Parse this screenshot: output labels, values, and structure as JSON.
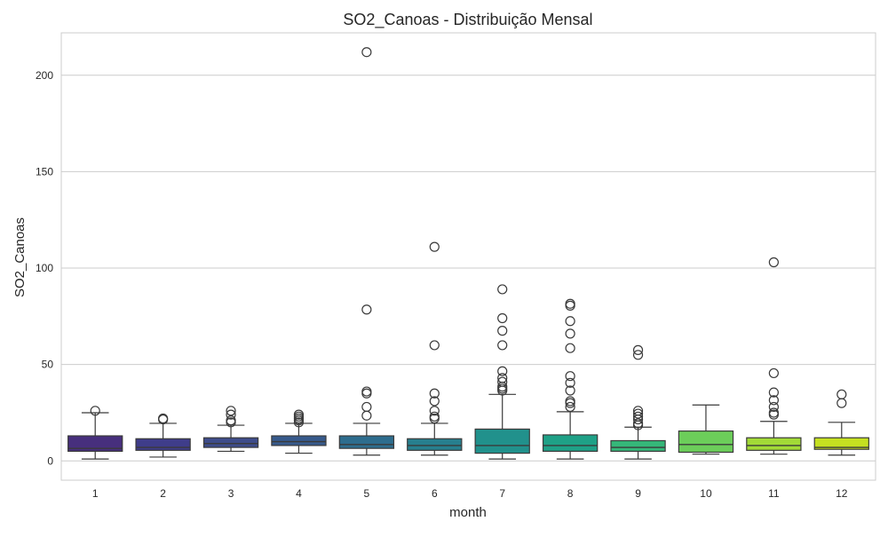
{
  "chart_data": {
    "type": "box",
    "title": "SO2_Canoas - Distribuição Mensal",
    "xlabel": "month",
    "ylabel": "SO2_Canoas",
    "categories": [
      "1",
      "2",
      "3",
      "4",
      "5",
      "6",
      "7",
      "8",
      "9",
      "10",
      "11",
      "12"
    ],
    "ylim": [
      -10,
      222
    ],
    "yticks": [
      0,
      50,
      100,
      150,
      200
    ],
    "grid": true,
    "boxes": [
      {
        "category": "1",
        "whisker_low": 1,
        "q1": 5,
        "median": 6.5,
        "q3": 13,
        "whisker_high": 25,
        "outliers": [
          26
        ],
        "color": "#472f7d"
      },
      {
        "category": "2",
        "whisker_low": 2,
        "q1": 5.5,
        "median": 7,
        "q3": 11.5,
        "whisker_high": 19.5,
        "outliers": [
          21.5,
          22
        ],
        "color": "#3f3d8a"
      },
      {
        "category": "3",
        "whisker_low": 5,
        "q1": 7,
        "median": 9,
        "q3": 12,
        "whisker_high": 18.5,
        "outliers": [
          20,
          21,
          24,
          26
        ],
        "color": "#3e4c8a"
      },
      {
        "category": "4",
        "whisker_low": 4,
        "q1": 8,
        "median": 10,
        "q3": 13,
        "whisker_high": 19.5,
        "outliers": [
          20,
          21,
          22,
          23,
          24
        ],
        "color": "#375a8c"
      },
      {
        "category": "5",
        "whisker_low": 3,
        "q1": 6.5,
        "median": 8.5,
        "q3": 13,
        "whisker_high": 19.5,
        "outliers": [
          23.5,
          28,
          35,
          36,
          78.5,
          212
        ],
        "color": "#2e6d8e"
      },
      {
        "category": "6",
        "whisker_low": 3,
        "q1": 5.5,
        "median": 8,
        "q3": 11.5,
        "whisker_high": 19.5,
        "outliers": [
          22,
          23,
          26,
          31,
          35,
          60,
          111
        ],
        "color": "#277f8e"
      },
      {
        "category": "7",
        "whisker_low": 1,
        "q1": 4,
        "median": 8,
        "q3": 16.5,
        "whisker_high": 34.5,
        "outliers": [
          36.5,
          37.5,
          38.5,
          41,
          43,
          46.5,
          60,
          67.5,
          74,
          89
        ],
        "color": "#21918c"
      },
      {
        "category": "8",
        "whisker_low": 1,
        "q1": 5,
        "median": 8,
        "q3": 13.5,
        "whisker_high": 25.5,
        "outliers": [
          28,
          30,
          31,
          36.5,
          40.5,
          44,
          58.5,
          66,
          72.5,
          80.5,
          81.5
        ],
        "color": "#1fa187"
      },
      {
        "category": "9",
        "whisker_low": 1,
        "q1": 5,
        "median": 7,
        "q3": 10.5,
        "whisker_high": 17.5,
        "outliers": [
          18.5,
          19.5,
          21.5,
          23,
          24.5,
          26,
          55,
          57.5
        ],
        "color": "#35b779"
      },
      {
        "category": "10",
        "whisker_low": 3.5,
        "q1": 4.5,
        "median": 8.5,
        "q3": 15.5,
        "whisker_high": 29,
        "outliers": [],
        "color": "#6ccd5a"
      },
      {
        "category": "11",
        "whisker_low": 3.5,
        "q1": 5.5,
        "median": 8,
        "q3": 12,
        "whisker_high": 20.5,
        "outliers": [
          24,
          25,
          28,
          31.5,
          35.5,
          45.5,
          103
        ],
        "color": "#a2da37"
      },
      {
        "category": "12",
        "whisker_low": 3,
        "q1": 6,
        "median": 7,
        "q3": 12,
        "whisker_high": 20,
        "outliers": [
          30,
          34.5
        ],
        "color": "#c5e021"
      }
    ]
  }
}
